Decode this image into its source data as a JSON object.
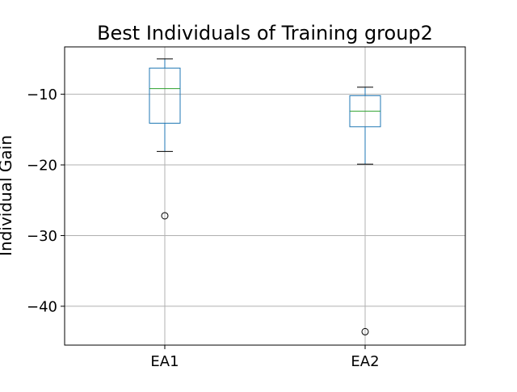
{
  "chart_data": {
    "type": "box",
    "title": "Best Individuals of Training group2",
    "xlabel": "",
    "ylabel": "Individual Gain",
    "categories": [
      "EA1",
      "EA2"
    ],
    "ylim": [
      -45.5,
      -3.3
    ],
    "yticks": [
      -10,
      -20,
      -30,
      -40
    ],
    "ytick_labels": [
      "−10",
      "−20",
      "−30",
      "−40"
    ],
    "grid": true,
    "boxes": [
      {
        "category": "EA1",
        "whisker_low": -18.1,
        "q1": -14.1,
        "median": -9.2,
        "q3": -6.3,
        "whisker_high": -5.0,
        "outliers": [
          -27.2
        ]
      },
      {
        "category": "EA2",
        "whisker_low": -19.9,
        "q1": -14.6,
        "median": -12.4,
        "q3": -10.2,
        "whisker_high": -9.0,
        "outliers": [
          -43.6
        ]
      }
    ],
    "colors": {
      "box": "#1f77b4",
      "median": "#2ca02c",
      "whisker": "#000000",
      "grid": "#b0b0b0",
      "outlier": "#000000"
    }
  }
}
